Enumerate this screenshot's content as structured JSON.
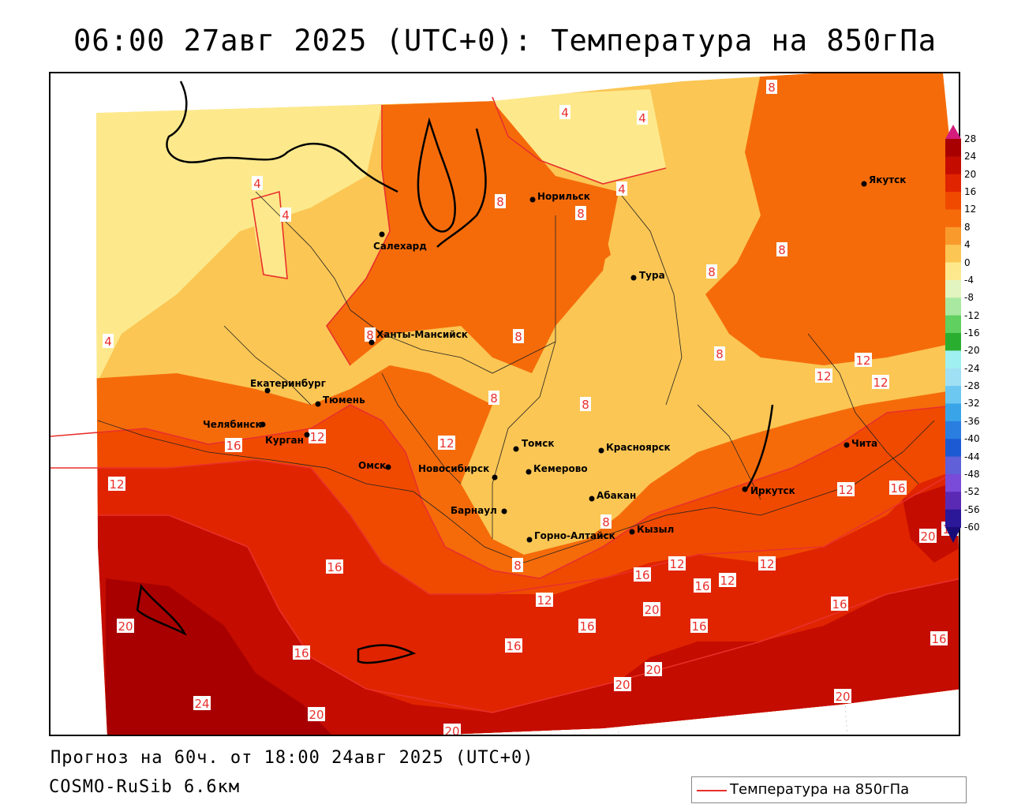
{
  "title": "06:00 27авг 2025 (UTC+0): Температура на 850гПа",
  "footer": {
    "forecast": "Прогноз на 60ч. от 18:00 24авг 2025 (UTC+0)",
    "model": "COSMO-RuSib 6.6км"
  },
  "legend": {
    "label": "Температура на 850гПа",
    "line_color": "#e8302c"
  },
  "colorbar": {
    "ticks": [
      "28",
      "24",
      "20",
      "16",
      "12",
      "8",
      "4",
      "0",
      "-4",
      "-8",
      "-12",
      "-16",
      "-20",
      "-24",
      "-28",
      "-32",
      "-36",
      "-40",
      "-44",
      "-48",
      "-52",
      "-56",
      "-60"
    ],
    "colors": [
      "#d41c7c",
      "#a80000",
      "#c40c00",
      "#e02400",
      "#f04a00",
      "#f56b0a",
      "#f99a2c",
      "#fbc654",
      "#fde98c",
      "#e2f4c0",
      "#a8e8a0",
      "#60d060",
      "#2aae30",
      "#9ff0f0",
      "#a0e0f4",
      "#6cc8f0",
      "#3aa4e8",
      "#2a7ee0",
      "#1c5ad4",
      "#6060d8",
      "#7a4ad8",
      "#5a2ab4",
      "#2a1898",
      "#1a0c78"
    ]
  },
  "cities": [
    {
      "name": "Норильск"
    },
    {
      "name": "Якутск"
    },
    {
      "name": "Салехард"
    },
    {
      "name": "Тура"
    },
    {
      "name": "Ханты-Мансийск"
    },
    {
      "name": "Екатеринбург"
    },
    {
      "name": "Тюмень"
    },
    {
      "name": "Челябинск"
    },
    {
      "name": "Курган"
    },
    {
      "name": "Томск"
    },
    {
      "name": "Красноярск"
    },
    {
      "name": "Чита"
    },
    {
      "name": "Омск"
    },
    {
      "name": "Новосибирск"
    },
    {
      "name": "Кемерово"
    },
    {
      "name": "Абакан"
    },
    {
      "name": "Иркутск"
    },
    {
      "name": "Барнаул"
    },
    {
      "name": "Горно-Алтайск"
    },
    {
      "name": "Кызыл"
    }
  ],
  "isotherm_labels": [
    "4",
    "8",
    "12",
    "16",
    "20",
    "24"
  ]
}
